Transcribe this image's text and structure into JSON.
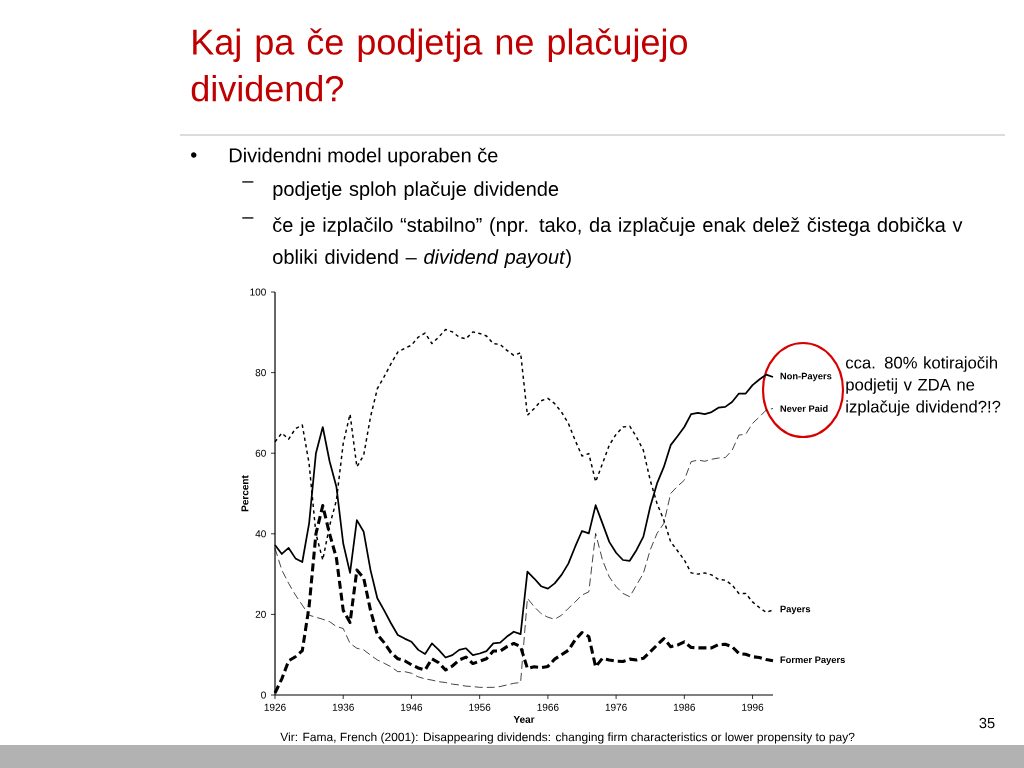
{
  "chart_data": {
    "type": "line",
    "title": "Kaj pa če podjetja ne plačujejo dividend?",
    "xlabel": "Year",
    "ylabel": "Percent",
    "annotations": [
      "•",
      "Dividendni model uporaben če",
      "–",
      "podjetje sploh plačuje dividende",
      "–",
      "če je izplačilo “stabilno” (npr. tako, da izplačuje enak delež čistega dobička v obliki dividend – *dividend payout*)",
      "cca. 80% kotirajočih podjetij v ZDA ne izplačuje dividend?!?",
      "Vir: Fama, French (2001): Disappearing dividends: changing firm characteristics or lower propensity to pay?",
      "35"
    ],
    "x": [
      1926,
      1927,
      1928,
      1929,
      1930,
      1931,
      1932,
      1933,
      1934,
      1935,
      1936,
      1937,
      1938,
      1939,
      1940,
      1941,
      1942,
      1943,
      1944,
      1945,
      1946,
      1947,
      1948,
      1949,
      1950,
      1951,
      1952,
      1953,
      1954,
      1955,
      1956,
      1957,
      1958,
      1959,
      1960,
      1961,
      1962,
      1963,
      1964,
      1965,
      1966,
      1967,
      1968,
      1969,
      1970,
      1971,
      1972,
      1973,
      1974,
      1975,
      1976,
      1977,
      1978,
      1979,
      1980,
      1981,
      1982,
      1983,
      1984,
      1985,
      1986,
      1987,
      1988,
      1989,
      1990,
      1991,
      1992,
      1993,
      1994,
      1995,
      1996,
      1997,
      1998,
      1999
    ],
    "series": [
      {
        "name": "Non-Payers",
        "color": "#000000",
        "line_style": "solid",
        "values": [
          37.2,
          35,
          36.5,
          33.9,
          33,
          42.6,
          60,
          66.5,
          58,
          51.7,
          37.6,
          30.3,
          43.4,
          40.5,
          31,
          24,
          21,
          17.8,
          14.9,
          14,
          13.2,
          11.2,
          10.2,
          12.8,
          11.2,
          9.3,
          9.9,
          11.2,
          11.6,
          9.9,
          10.3,
          10.9,
          12.8,
          13,
          14.5,
          15.7,
          15.1,
          30.6,
          28.9,
          27,
          26.4,
          27.7,
          29.8,
          32.6,
          36.8,
          40.7,
          40.1,
          47.1,
          42.6,
          38,
          35.3,
          33.5,
          33.3,
          36,
          39.3,
          46.7,
          52.5,
          56.6,
          62,
          64.2,
          66.5,
          69.7,
          70,
          69.7,
          70.2,
          71.3,
          71.5,
          72.7,
          74.8,
          74.8,
          76.9,
          78.3,
          79.5,
          78.9
        ]
      },
      {
        "name": "Never Paid",
        "color": "#000000",
        "line_style": "dashed",
        "values": [
          36.4,
          31,
          27.7,
          24.8,
          22.3,
          19.8,
          19.3,
          18.8,
          18.2,
          17,
          16.5,
          12.8,
          11.6,
          11.2,
          9.9,
          8.7,
          7.9,
          7,
          5.8,
          5.8,
          5.4,
          4.5,
          4,
          3.7,
          3.3,
          3.1,
          2.7,
          2.5,
          2.2,
          2.1,
          1.9,
          1.9,
          1.9,
          2.1,
          2.5,
          2.9,
          3.1,
          24,
          21.9,
          20.2,
          19.3,
          18.8,
          19.8,
          21.5,
          23.1,
          24.8,
          25.6,
          40.1,
          33.5,
          29.3,
          26.9,
          25.2,
          24.4,
          27.3,
          30.2,
          36,
          40.1,
          42.6,
          50,
          51.8,
          53.3,
          57.9,
          58.3,
          58,
          58.5,
          58.8,
          58.9,
          60.7,
          64.5,
          64.7,
          67.4,
          69,
          70.7,
          71.1
        ]
      },
      {
        "name": "Payers",
        "color": "#000000",
        "line_style": "dotted",
        "values": [
          62.8,
          65,
          63.5,
          66.1,
          67,
          57.4,
          40,
          33.5,
          42,
          48.3,
          62.4,
          69.7,
          56.6,
          59.5,
          69,
          76,
          79,
          82.2,
          85.1,
          86,
          86.8,
          88.8,
          89.8,
          87.2,
          88.8,
          90.7,
          90.1,
          88.8,
          88.4,
          90.1,
          89.7,
          89.1,
          87.2,
          87,
          85.5,
          84.3,
          84.9,
          69.4,
          71.1,
          73,
          73.6,
          72.3,
          70.2,
          67.4,
          63.2,
          59.3,
          59.9,
          52.9,
          57.4,
          62,
          64.7,
          66.5,
          66.7,
          64,
          60.7,
          53.3,
          47.5,
          43.4,
          38,
          35.8,
          33.5,
          30.3,
          30,
          30.3,
          29.8,
          28.7,
          28.5,
          27.3,
          25.2,
          25.2,
          23.1,
          21.7,
          20.5,
          21.1
        ]
      },
      {
        "name": "Former Payers",
        "color": "#000000",
        "line_style": "dashed",
        "values": [
          0.5,
          4,
          8.5,
          9.5,
          11,
          22,
          40,
          47,
          40,
          34,
          21,
          18,
          31,
          29,
          21,
          15,
          13,
          10.5,
          9,
          8.5,
          7.5,
          6.7,
          6.2,
          9,
          8,
          6.2,
          7.2,
          8.7,
          9.4,
          7.8,
          8.4,
          9,
          10.9,
          10.9,
          12,
          12.8,
          12,
          6.6,
          7,
          6.8,
          7.1,
          8.9,
          10,
          11.1,
          13.7,
          15.5,
          14.5,
          7,
          9.1,
          8.7,
          8.4,
          8.3,
          8.9,
          8.7,
          9.1,
          10.7,
          12.4,
          14,
          12,
          12.4,
          13.2,
          11.8,
          11.7,
          11.7,
          11.7,
          12.5,
          12.6,
          12,
          10.3,
          10.1,
          9.5,
          9.3,
          8.8,
          8.5
        ]
      }
    ],
    "xlim": [
      1926,
      1999
    ],
    "ylim": [
      0,
      100
    ],
    "xticks": [
      1926,
      1936,
      1946,
      1956,
      1966,
      1976,
      1986,
      1996
    ],
    "yticks": [
      0,
      20,
      40,
      60,
      80,
      100
    ],
    "legend": false,
    "grid": false,
    "marker": "none"
  }
}
